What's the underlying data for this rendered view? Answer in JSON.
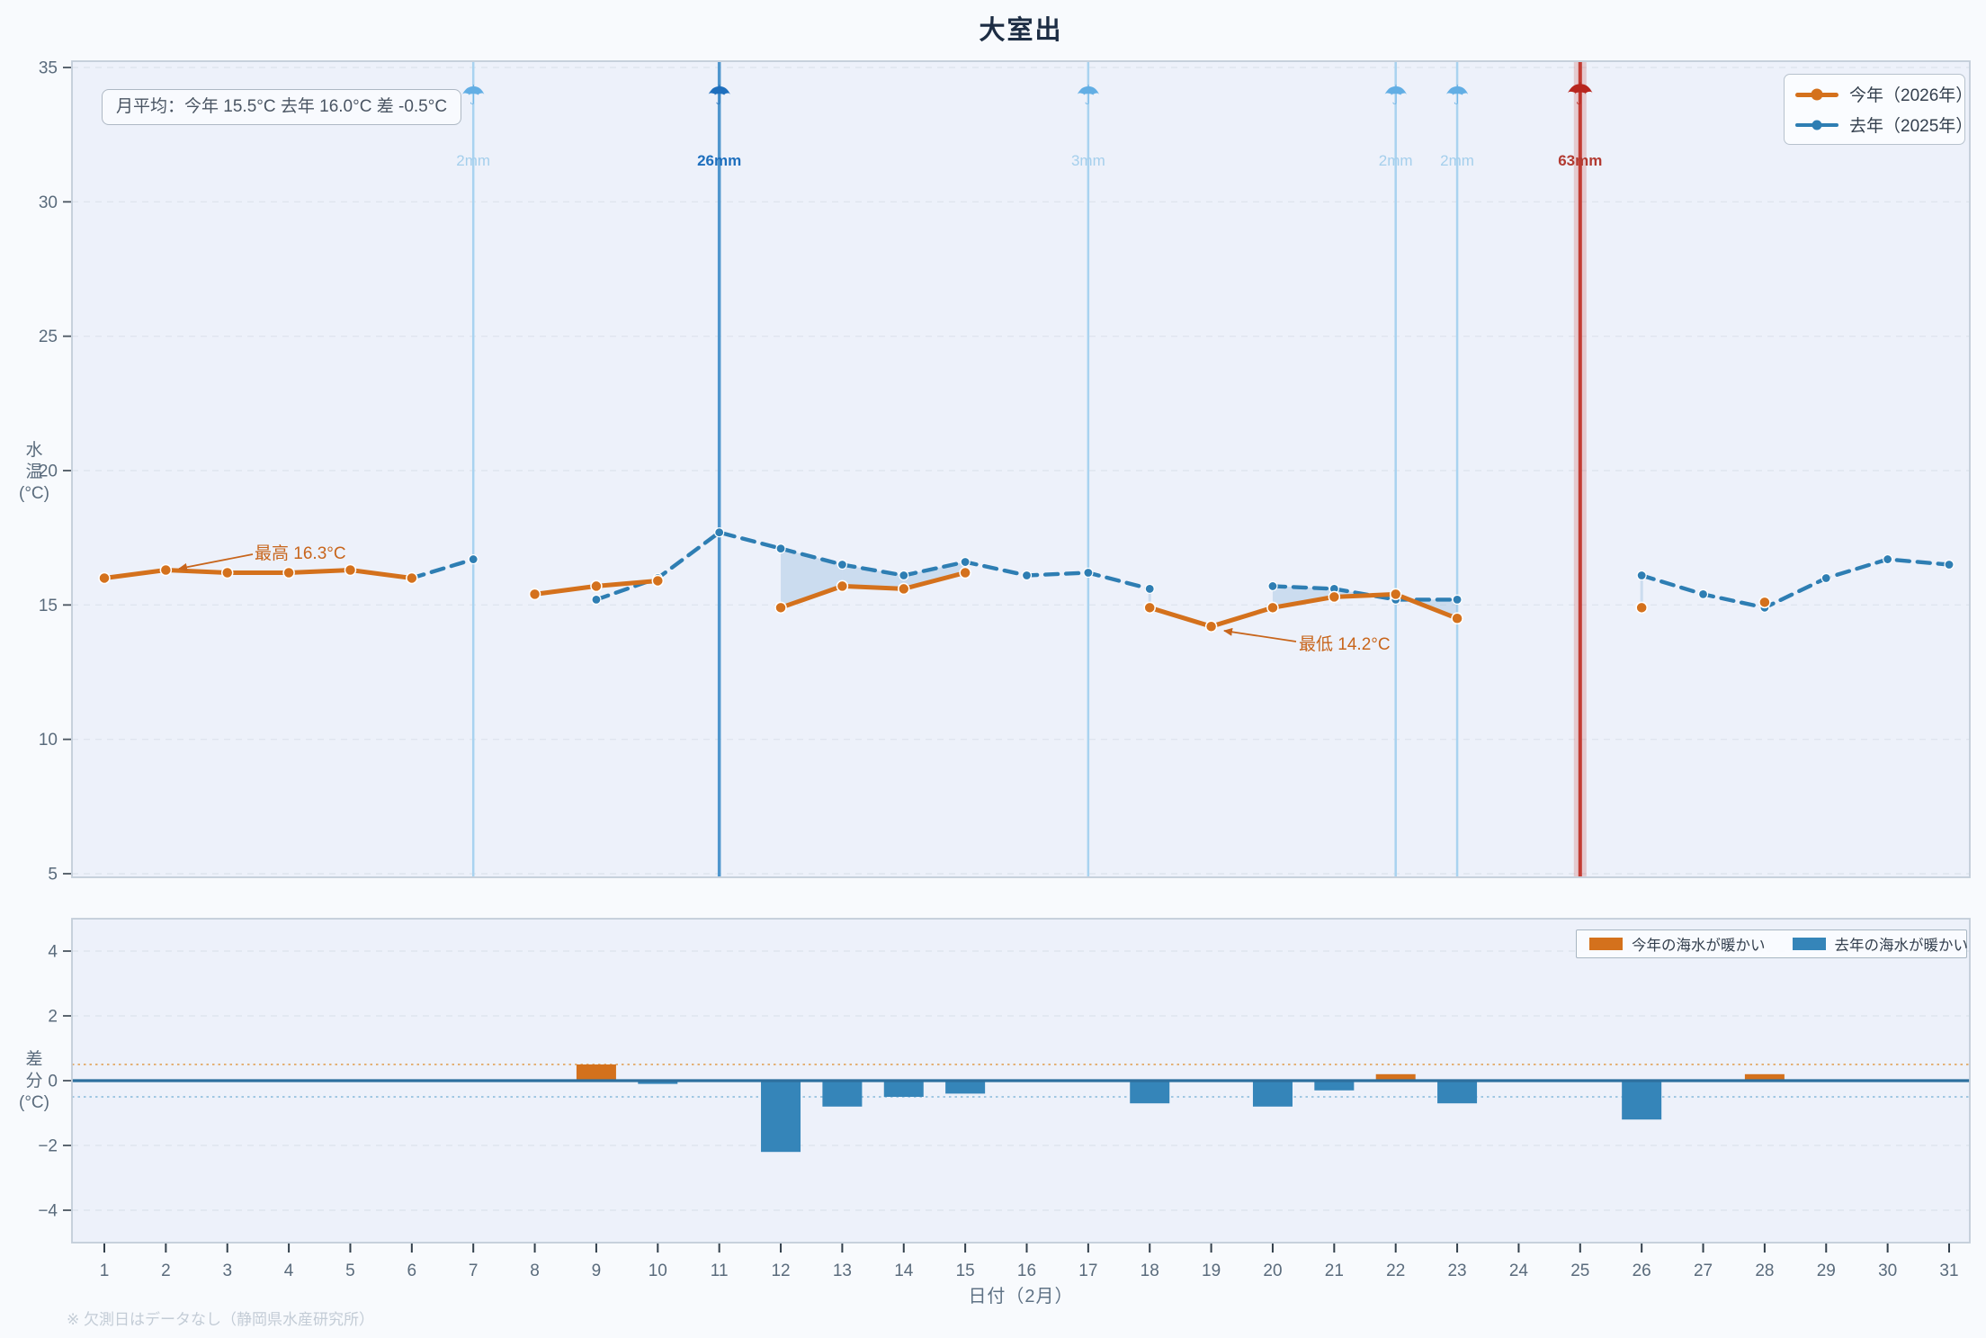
{
  "footer": "※ 欠測日はデータなし（静岡県水産研究所）",
  "axis_titles": {
    "top_lines": [
      "水",
      "温",
      "(°C)"
    ],
    "bottom_lines": [
      "差",
      "分",
      "(°C)"
    ]
  },
  "colors": {
    "this_year_orange": "#d4711c",
    "last_year_blue": "#2e7eb3",
    "bar_blue": "#3585b9",
    "bar_orange": "#d4711c",
    "panel_bg": "#edf1fa",
    "panel_border": "#c2cdd9",
    "grid": "#dfe5ee",
    "zero_line": "#2d6f9e",
    "threshold_plus": "#e09c4a",
    "threshold_minus": "#86b9da",
    "fill_between": "rgba(147,186,222,0.38)",
    "rain_light_line": "#a9d3f0",
    "rain_light_label": "#a5cfec",
    "rain_light_umbrella": "#62aee4",
    "rain_medium": "#1e6fbd",
    "rain_medium_line": "#4f96cd",
    "rain_heavy_line": "#c23b33",
    "rain_heavy_label": "#b23a31",
    "annotation": "#c8651b",
    "tick_text": "#5a6b7c",
    "title_text": "#1d2d44"
  },
  "chart_data": [
    {
      "type": "line",
      "title": "大室出",
      "xlabel": "日付（2月）",
      "ylabel": "水温(°C)",
      "ylim": [
        5,
        35
      ],
      "yticks": [
        35,
        30,
        25,
        20,
        15,
        10,
        5
      ],
      "x_days": [
        1,
        2,
        3,
        4,
        5,
        6,
        7,
        8,
        9,
        10,
        11,
        12,
        13,
        14,
        15,
        16,
        17,
        18,
        19,
        20,
        21,
        22,
        23,
        24,
        25,
        26,
        27,
        28,
        29,
        30,
        31
      ],
      "avg_note": "月平均：今年 15.5°C  去年 16.0°C  差 -0.5°C",
      "series": [
        {
          "name": "今年（2026年）",
          "color": "#d4711c",
          "style": "solid",
          "values": [
            16.0,
            16.3,
            16.2,
            16.2,
            16.3,
            16.0,
            null,
            15.4,
            15.7,
            15.9,
            null,
            14.9,
            15.7,
            15.6,
            16.2,
            null,
            null,
            14.9,
            14.2,
            14.9,
            15.3,
            15.4,
            14.5,
            null,
            null,
            14.9,
            null,
            15.1,
            null,
            null,
            null
          ]
        },
        {
          "name": "去年（2025年）",
          "color": "#2e7eb3",
          "style": "dashed",
          "values": [
            null,
            null,
            null,
            null,
            null,
            16.0,
            16.7,
            null,
            15.2,
            16.0,
            17.7,
            17.1,
            16.5,
            16.1,
            16.6,
            16.1,
            16.2,
            15.6,
            null,
            15.7,
            15.6,
            15.2,
            15.2,
            null,
            null,
            16.1,
            15.4,
            14.9,
            16.0,
            16.7,
            16.5
          ]
        }
      ],
      "annotations": [
        {
          "text": "最高 16.3°C",
          "day": 2,
          "value": 16.3
        },
        {
          "text": "最低 14.2°C",
          "day": 19,
          "value": 14.2
        }
      ],
      "rain_events": [
        {
          "day": 7,
          "label": "2mm",
          "intensity": "light"
        },
        {
          "day": 11,
          "label": "26mm",
          "intensity": "medium"
        },
        {
          "day": 17,
          "label": "3mm",
          "intensity": "light"
        },
        {
          "day": 22,
          "label": "2mm",
          "intensity": "light"
        },
        {
          "day": 23,
          "label": "2mm",
          "intensity": "light"
        },
        {
          "day": 25,
          "label": "63mm",
          "intensity": "heavy"
        }
      ]
    },
    {
      "type": "bar",
      "ylabel": "差分(°C)",
      "ylim": [
        -5,
        5
      ],
      "yticks": [
        4,
        2,
        0,
        -2,
        -4
      ],
      "thresholds": [
        0.5,
        -0.5
      ],
      "x_days": [
        1,
        2,
        3,
        4,
        5,
        6,
        7,
        8,
        9,
        10,
        11,
        12,
        13,
        14,
        15,
        16,
        17,
        18,
        19,
        20,
        21,
        22,
        23,
        24,
        25,
        26,
        27,
        28,
        29,
        30,
        31
      ],
      "values": [
        null,
        null,
        null,
        null,
        null,
        0.0,
        null,
        null,
        0.5,
        -0.1,
        null,
        -2.2,
        -0.8,
        -0.5,
        -0.4,
        null,
        null,
        -0.7,
        null,
        -0.8,
        -0.3,
        0.2,
        -0.7,
        null,
        null,
        -1.2,
        null,
        0.2,
        null,
        null,
        null
      ],
      "legend": [
        {
          "label": "今年の海水が暖かい",
          "color": "#d4711c"
        },
        {
          "label": "去年の海水が暖かい",
          "color": "#3585b9"
        }
      ]
    }
  ]
}
